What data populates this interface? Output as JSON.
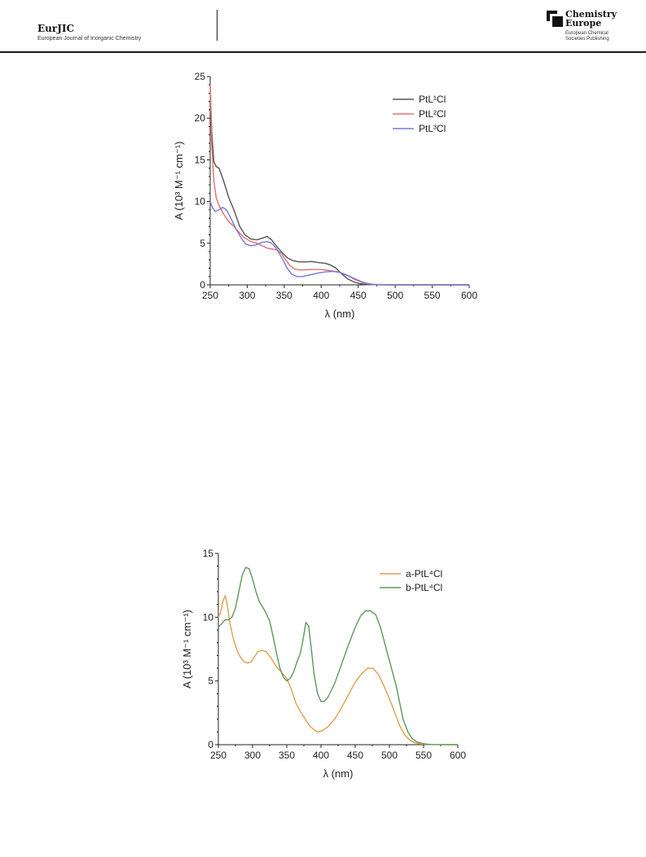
{
  "header": {
    "journal_title": "EurJIC",
    "journal_subtitle": "European Journal of Inorganic Chemistry",
    "publisher_line1": "Chemistry",
    "publisher_line2": "Europe",
    "publisher_tagline1": "European Chemical",
    "publisher_tagline2": "Societies Publishing"
  },
  "chart_data": [
    {
      "type": "line",
      "xlabel": "λ (nm)",
      "ylabel": "A (10³ M⁻¹ cm⁻¹)",
      "xlim": [
        250,
        600
      ],
      "ylim": [
        0,
        25
      ],
      "xticks": [
        250,
        300,
        350,
        400,
        450,
        500,
        550,
        600
      ],
      "yticks": [
        0,
        5,
        10,
        15,
        20,
        25
      ],
      "legend_position": "top-right",
      "series": [
        {
          "name": "PtL¹Cl",
          "color": "#555555",
          "points": [
            [
              250,
              24
            ],
            [
              252,
              18.5
            ],
            [
              255,
              14.8
            ],
            [
              258,
              14.2
            ],
            [
              262,
              14
            ],
            [
              268,
              12.5
            ],
            [
              275,
              10.5
            ],
            [
              282,
              9
            ],
            [
              290,
              7
            ],
            [
              297,
              6
            ],
            [
              305,
              5.5
            ],
            [
              313,
              5.4
            ],
            [
              320,
              5.6
            ],
            [
              327,
              5.8
            ],
            [
              333,
              5.4
            ],
            [
              340,
              4.6
            ],
            [
              348,
              3.8
            ],
            [
              355,
              3.2
            ],
            [
              362,
              2.9
            ],
            [
              370,
              2.75
            ],
            [
              378,
              2.75
            ],
            [
              387,
              2.8
            ],
            [
              395,
              2.7
            ],
            [
              405,
              2.6
            ],
            [
              412,
              2.4
            ],
            [
              420,
              2
            ],
            [
              428,
              1.3
            ],
            [
              436,
              0.7
            ],
            [
              444,
              0.35
            ],
            [
              452,
              0.15
            ],
            [
              460,
              0.05
            ],
            [
              470,
              0.02
            ],
            [
              490,
              0
            ],
            [
              600,
              0
            ]
          ]
        },
        {
          "name": "PtL²Cl",
          "color": "#e07070",
          "points": [
            [
              250,
              24
            ],
            [
              252,
              17
            ],
            [
              255,
              12.5
            ],
            [
              258,
              10.5
            ],
            [
              262,
              9.5
            ],
            [
              268,
              8.5
            ],
            [
              275,
              7.6
            ],
            [
              282,
              7
            ],
            [
              290,
              6.2
            ],
            [
              297,
              5.6
            ],
            [
              305,
              5.2
            ],
            [
              313,
              5
            ],
            [
              320,
              4.7
            ],
            [
              327,
              4.4
            ],
            [
              333,
              4.3
            ],
            [
              340,
              4.2
            ],
            [
              346,
              3.8
            ],
            [
              352,
              3
            ],
            [
              358,
              2.3
            ],
            [
              364,
              1.9
            ],
            [
              370,
              1.8
            ],
            [
              378,
              1.8
            ],
            [
              387,
              1.85
            ],
            [
              395,
              1.85
            ],
            [
              405,
              1.8
            ],
            [
              412,
              1.7
            ],
            [
              420,
              1.6
            ],
            [
              428,
              1.4
            ],
            [
              436,
              1.1
            ],
            [
              444,
              0.7
            ],
            [
              452,
              0.4
            ],
            [
              460,
              0.18
            ],
            [
              468,
              0.06
            ],
            [
              478,
              0.02
            ],
            [
              500,
              0
            ],
            [
              600,
              0
            ]
          ]
        },
        {
          "name": "PtL³Cl",
          "color": "#7878d8",
          "points": [
            [
              250,
              10
            ],
            [
              253,
              9.3
            ],
            [
              257,
              8.8
            ],
            [
              262,
              9
            ],
            [
              267,
              9.3
            ],
            [
              272,
              9
            ],
            [
              278,
              8
            ],
            [
              285,
              6.7
            ],
            [
              292,
              5.6
            ],
            [
              298,
              4.9
            ],
            [
              305,
              4.7
            ],
            [
              312,
              4.8
            ],
            [
              320,
              5.1
            ],
            [
              327,
              5.2
            ],
            [
              333,
              5
            ],
            [
              340,
              4.3
            ],
            [
              347,
              3.2
            ],
            [
              354,
              2
            ],
            [
              360,
              1.3
            ],
            [
              367,
              1
            ],
            [
              375,
              1
            ],
            [
              385,
              1.2
            ],
            [
              395,
              1.4
            ],
            [
              405,
              1.55
            ],
            [
              415,
              1.6
            ],
            [
              422,
              1.55
            ],
            [
              430,
              1.35
            ],
            [
              438,
              1.05
            ],
            [
              446,
              0.7
            ],
            [
              454,
              0.4
            ],
            [
              462,
              0.18
            ],
            [
              470,
              0.07
            ],
            [
              480,
              0.02
            ],
            [
              500,
              0
            ],
            [
              600,
              0
            ]
          ]
        }
      ]
    },
    {
      "type": "line",
      "xlabel": "λ (nm)",
      "ylabel": "A (10³ M⁻¹ cm⁻¹)",
      "xlim": [
        250,
        600
      ],
      "ylim": [
        0,
        15
      ],
      "xticks": [
        250,
        300,
        350,
        400,
        450,
        500,
        550,
        600
      ],
      "yticks": [
        0,
        5,
        10,
        15
      ],
      "legend_position": "top-right",
      "series": [
        {
          "name": "a-PtL⁴Cl",
          "color": "#e0a050",
          "points": [
            [
              250,
              10
            ],
            [
              253,
              10.3
            ],
            [
              257,
              11.3
            ],
            [
              260,
              11.7
            ],
            [
              263,
              11
            ],
            [
              267,
              9.5
            ],
            [
              272,
              8.3
            ],
            [
              278,
              7.3
            ],
            [
              283,
              6.8
            ],
            [
              288,
              6.5
            ],
            [
              293,
              6.4
            ],
            [
              298,
              6.5
            ],
            [
              303,
              6.9
            ],
            [
              308,
              7.3
            ],
            [
              313,
              7.4
            ],
            [
              320,
              7.3
            ],
            [
              327,
              6.8
            ],
            [
              335,
              6.1
            ],
            [
              342,
              5.7
            ],
            [
              350,
              5.2
            ],
            [
              357,
              4.3
            ],
            [
              363,
              3.3
            ],
            [
              370,
              2.6
            ],
            [
              377,
              2
            ],
            [
              383,
              1.5
            ],
            [
              390,
              1.15
            ],
            [
              395,
              1
            ],
            [
              402,
              1.1
            ],
            [
              410,
              1.4
            ],
            [
              420,
              2
            ],
            [
              430,
              2.9
            ],
            [
              440,
              3.9
            ],
            [
              450,
              4.9
            ],
            [
              460,
              5.6
            ],
            [
              468,
              6
            ],
            [
              476,
              6
            ],
            [
              484,
              5.5
            ],
            [
              492,
              4.6
            ],
            [
              500,
              3.6
            ],
            [
              508,
              2.5
            ],
            [
              515,
              1.5
            ],
            [
              522,
              0.8
            ],
            [
              530,
              0.35
            ],
            [
              537,
              0.15
            ],
            [
              545,
              0.06
            ],
            [
              555,
              0.02
            ],
            [
              600,
              0
            ]
          ]
        },
        {
          "name": "b-PtL⁴Cl",
          "color": "#5a9a5a",
          "points": [
            [
              250,
              9.2
            ],
            [
              255,
              9.5
            ],
            [
              260,
              9.8
            ],
            [
              265,
              9.8
            ],
            [
              270,
              10
            ],
            [
              275,
              10.7
            ],
            [
              280,
              12
            ],
            [
              285,
              13.3
            ],
            [
              290,
              13.9
            ],
            [
              295,
              13.8
            ],
            [
              300,
              13
            ],
            [
              305,
              12
            ],
            [
              310,
              11.2
            ],
            [
              318,
              10.5
            ],
            [
              325,
              9.7
            ],
            [
              330,
              8.5
            ],
            [
              335,
              7.2
            ],
            [
              340,
              6
            ],
            [
              345,
              5.3
            ],
            [
              350,
              5
            ],
            [
              355,
              5.2
            ],
            [
              360,
              5.7
            ],
            [
              365,
              6.5
            ],
            [
              370,
              7.2
            ],
            [
              374,
              8.3
            ],
            [
              378,
              9.6
            ],
            [
              382,
              9.3
            ],
            [
              386,
              7.5
            ],
            [
              390,
              5.5
            ],
            [
              395,
              4
            ],
            [
              400,
              3.4
            ],
            [
              405,
              3.4
            ],
            [
              410,
              3.7
            ],
            [
              420,
              4.8
            ],
            [
              430,
              6.3
            ],
            [
              440,
              7.8
            ],
            [
              450,
              9.2
            ],
            [
              458,
              10.1
            ],
            [
              465,
              10.5
            ],
            [
              472,
              10.5
            ],
            [
              480,
              10.2
            ],
            [
              487,
              9.2
            ],
            [
              495,
              7.6
            ],
            [
              502,
              6.2
            ],
            [
              510,
              4.6
            ],
            [
              515,
              3.3
            ],
            [
              520,
              2
            ],
            [
              527,
              1
            ],
            [
              533,
              0.5
            ],
            [
              540,
              0.22
            ],
            [
              548,
              0.1
            ],
            [
              556,
              0.04
            ],
            [
              565,
              0.01
            ],
            [
              600,
              0
            ]
          ]
        }
      ]
    }
  ]
}
